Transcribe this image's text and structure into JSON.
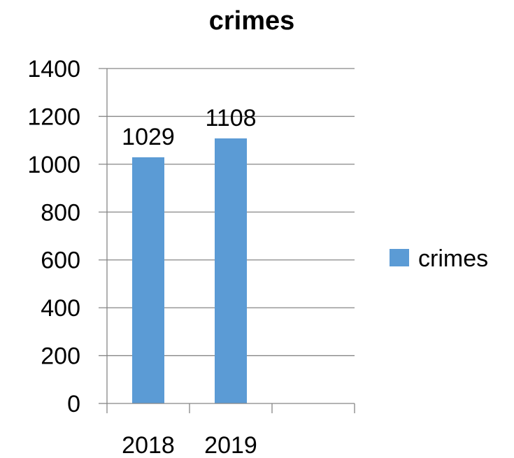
{
  "chart_data": {
    "type": "bar",
    "title": "crimes",
    "categories": [
      "2018",
      "2019",
      ""
    ],
    "series": [
      {
        "name": "crimes",
        "values": [
          1029,
          1108,
          null
        ]
      }
    ],
    "data_labels": [
      "1029",
      "1108"
    ],
    "xlabel": "",
    "ylabel": "",
    "ylim": [
      0,
      1400
    ],
    "yticks": [
      0,
      200,
      400,
      600,
      800,
      1000,
      1200,
      1400
    ],
    "ytick_labels": [
      "0",
      "200",
      "400",
      "600",
      "800",
      "1000",
      "1200",
      "1400"
    ],
    "grid": true,
    "legend": {
      "position": "right",
      "entries": [
        "crimes"
      ]
    },
    "colors": {
      "bar": "#5B9BD5",
      "grid": "#868686",
      "axis": "#868686",
      "text": "#000000"
    }
  }
}
